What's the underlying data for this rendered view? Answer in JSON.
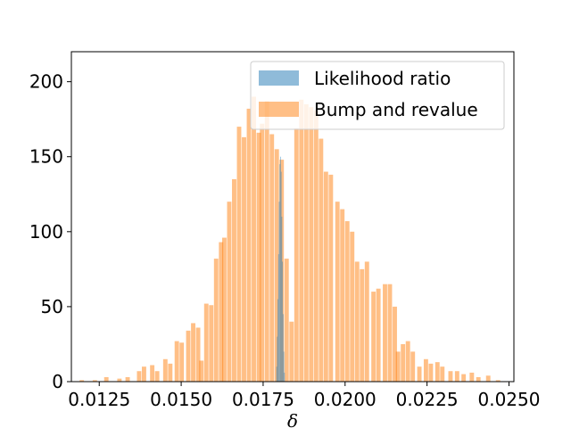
{
  "chart_data": {
    "type": "bar",
    "title": "",
    "xlabel": "δ",
    "ylabel": "",
    "xlim": [
      0.01165,
      0.02515
    ],
    "ylim": [
      0,
      220
    ],
    "grid": false,
    "legend_position": "top-right",
    "x_ticks": [
      "0.0125",
      "0.0150",
      "0.0175",
      "0.0200",
      "0.0225",
      "0.0250"
    ],
    "x_tick_values": [
      0.0125,
      0.015,
      0.0175,
      0.02,
      0.0225,
      0.025
    ],
    "y_ticks": [
      "0",
      "50",
      "100",
      "150",
      "200"
    ],
    "y_tick_values": [
      0,
      50,
      100,
      150,
      200
    ],
    "series": [
      {
        "name": "Likelihood ratio",
        "color": "#1f77b4",
        "alpha": 0.5,
        "bin_width": 1.52e-05,
        "bins": [
          [
            0.0179,
            10
          ],
          [
            0.01792,
            30
          ],
          [
            0.01794,
            55
          ],
          [
            0.01796,
            85
          ],
          [
            0.01798,
            120
          ],
          [
            0.018,
            145
          ],
          [
            0.01802,
            150
          ],
          [
            0.01804,
            140
          ],
          [
            0.01806,
            110
          ],
          [
            0.01808,
            80
          ],
          [
            0.0181,
            45
          ],
          [
            0.01812,
            20
          ],
          [
            0.01814,
            6
          ]
        ]
      },
      {
        "name": "Bump and revalue",
        "color": "#ff7f0e",
        "alpha": 0.5,
        "bin_width": 0.000133,
        "bins": [
          [
            0.0119,
            1
          ],
          [
            0.0123,
            1
          ],
          [
            0.01265,
            3
          ],
          [
            0.01305,
            2
          ],
          [
            0.0133,
            3
          ],
          [
            0.01365,
            7
          ],
          [
            0.0138,
            10
          ],
          [
            0.01405,
            11
          ],
          [
            0.0142,
            7
          ],
          [
            0.01445,
            15
          ],
          [
            0.0146,
            12
          ],
          [
            0.0148,
            27
          ],
          [
            0.01495,
            26
          ],
          [
            0.01515,
            34
          ],
          [
            0.0153,
            39
          ],
          [
            0.01545,
            36
          ],
          [
            0.01555,
            14
          ],
          [
            0.0157,
            52
          ],
          [
            0.01585,
            51
          ],
          [
            0.016,
            82
          ],
          [
            0.01615,
            93
          ],
          [
            0.01625,
            96
          ],
          [
            0.0164,
            120
          ],
          [
            0.01655,
            135
          ],
          [
            0.0167,
            170
          ],
          [
            0.01685,
            163
          ],
          [
            0.017,
            182
          ],
          [
            0.01715,
            190
          ],
          [
            0.0173,
            166
          ],
          [
            0.0174,
            172
          ],
          [
            0.01755,
            187
          ],
          [
            0.0177,
            165
          ],
          [
            0.01785,
            155
          ],
          [
            0.018,
            148
          ],
          [
            0.01815,
            82
          ],
          [
            0.0183,
            40
          ],
          [
            0.01845,
            169
          ],
          [
            0.0186,
            188
          ],
          [
            0.01875,
            185
          ],
          [
            0.0189,
            183
          ],
          [
            0.01905,
            181
          ],
          [
            0.0192,
            162
          ],
          [
            0.01935,
            140
          ],
          [
            0.0195,
            138
          ],
          [
            0.0197,
            120
          ],
          [
            0.01985,
            115
          ],
          [
            0.02,
            107
          ],
          [
            0.02015,
            100
          ],
          [
            0.0203,
            80
          ],
          [
            0.02045,
            75
          ],
          [
            0.0206,
            80
          ],
          [
            0.0208,
            60
          ],
          [
            0.02095,
            62
          ],
          [
            0.02115,
            65
          ],
          [
            0.0213,
            65
          ],
          [
            0.02145,
            50
          ],
          [
            0.02155,
            20
          ],
          [
            0.0217,
            25
          ],
          [
            0.02185,
            27
          ],
          [
            0.022,
            20
          ],
          [
            0.0222,
            10
          ],
          [
            0.0224,
            15
          ],
          [
            0.02255,
            12
          ],
          [
            0.02275,
            13
          ],
          [
            0.0229,
            10
          ],
          [
            0.02315,
            7
          ],
          [
            0.02335,
            7
          ],
          [
            0.02355,
            5
          ],
          [
            0.0238,
            6
          ],
          [
            0.024,
            3
          ],
          [
            0.0243,
            4
          ],
          [
            0.0246,
            1
          ]
        ]
      }
    ]
  }
}
